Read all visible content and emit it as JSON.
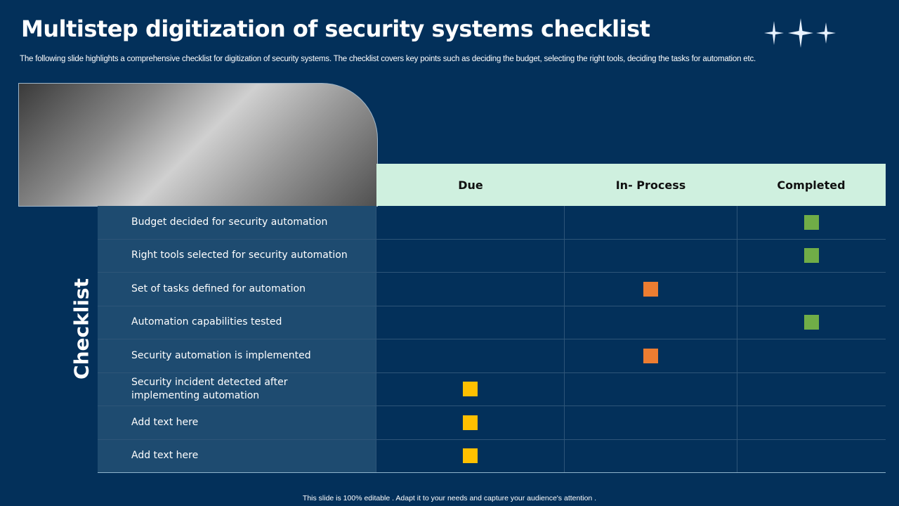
{
  "title": "Multistep digitization of security systems checklist",
  "subtitle": "The following slide highlights a comprehensive checklist for digitization of security systems. The checklist covers key points such as deciding the budget, selecting the right tools, deciding the tasks for automation etc.",
  "side_label": "Checklist",
  "columns": [
    "Due",
    "In- Process",
    "Completed"
  ],
  "status_colors": {
    "Due": "#ffc000",
    "In- Process": "#ed7d31",
    "Completed": "#70ad47"
  },
  "rows": [
    {
      "label": "Budget decided for security automation",
      "status": "Completed"
    },
    {
      "label": "Right tools selected for security automation",
      "status": "Completed"
    },
    {
      "label": "Set of tasks defined for automation",
      "status": "In- Process"
    },
    {
      "label": "Automation  capabilities tested",
      "status": "Completed"
    },
    {
      "label": "Security automation is implemented",
      "status": "In- Process"
    },
    {
      "label": "Security incident detected after implementing automation",
      "status": "Due"
    },
    {
      "label": "Add text here",
      "status": "Due"
    },
    {
      "label": "Add text here",
      "status": "Due"
    }
  ],
  "footer": "This slide is 100% editable . Adapt it to your needs and capture your audience's attention ."
}
